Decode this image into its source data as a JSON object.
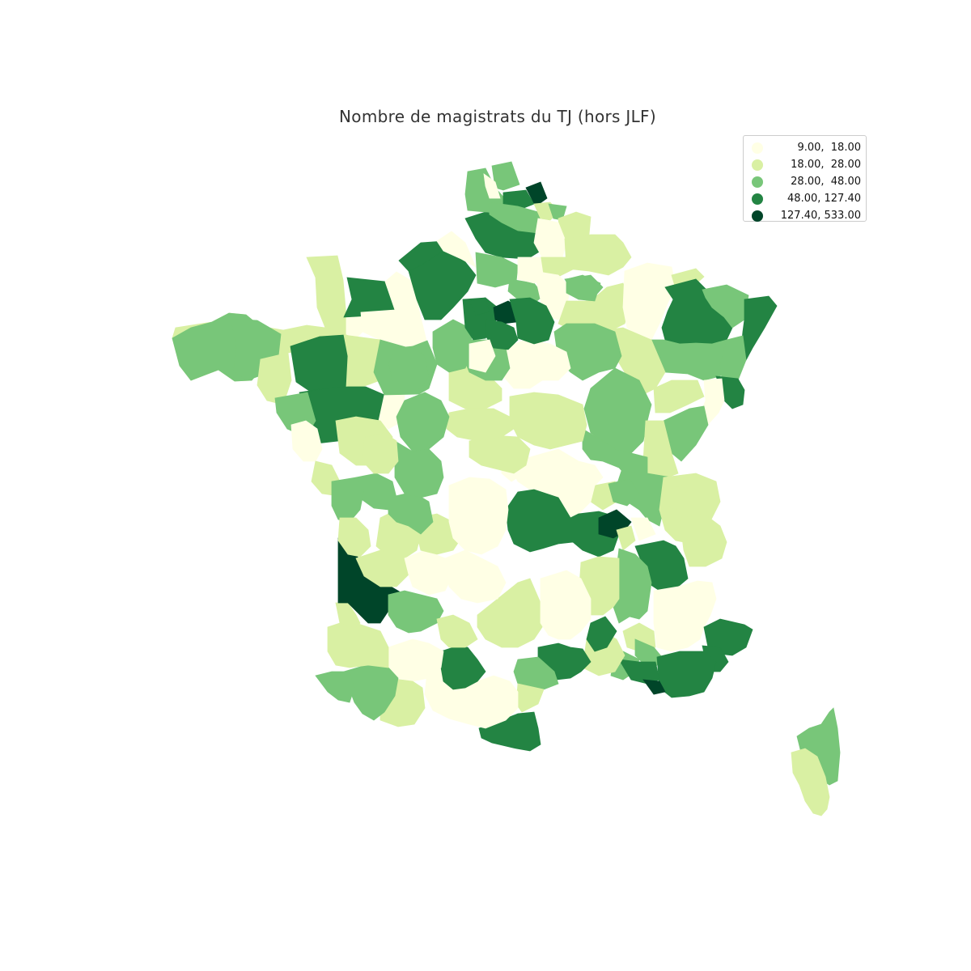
{
  "chart_data": {
    "type": "choropleth",
    "title": "Nombre de magistrats du TJ (hors JLF)",
    "legend": {
      "placement": "top-right",
      "classes": [
        {
          "label": "9.00,  18.00",
          "range": [
            9.0,
            18.0
          ],
          "color": "#ffffe5"
        },
        {
          "label": "18.00,  28.00",
          "range": [
            18.0,
            28.0
          ],
          "color": "#d9f0a3"
        },
        {
          "label": "28.00,  48.00",
          "range": [
            28.0,
            48.0
          ],
          "color": "#78c679"
        },
        {
          "label": "48.00, 127.40",
          "range": [
            48.0,
            127.4
          ],
          "color": "#238443"
        },
        {
          "label": "127.40, 533.00",
          "range": [
            127.4,
            533.0
          ],
          "color": "#004529"
        }
      ]
    }
  }
}
